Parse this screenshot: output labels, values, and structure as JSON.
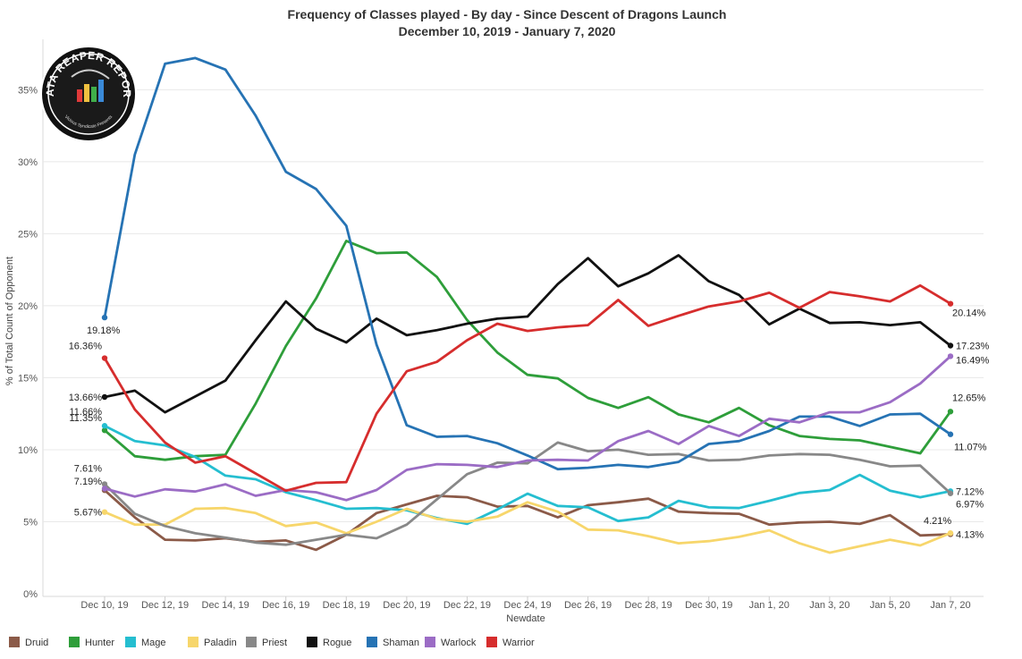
{
  "chart_data": {
    "type": "line",
    "title": "Frequency of Classes played - By day - Since Descent of Dragons Launch",
    "subtitle": "December 10, 2019 - January 7, 2020",
    "xlabel": "Newdate",
    "ylabel": "% of Total Count of Opponent",
    "ylim": [
      0,
      38
    ],
    "yticks": [
      0,
      5,
      10,
      15,
      20,
      25,
      30,
      35
    ],
    "ytick_labels": [
      "0%",
      "5%",
      "10%",
      "15%",
      "20%",
      "25%",
      "30%",
      "35%"
    ],
    "x": [
      "Dec 10, 19",
      "Dec 11, 19",
      "Dec 12, 19",
      "Dec 13, 19",
      "Dec 14, 19",
      "Dec 15, 19",
      "Dec 16, 19",
      "Dec 17, 19",
      "Dec 18, 19",
      "Dec 19, 19",
      "Dec 20, 19",
      "Dec 21, 19",
      "Dec 22, 19",
      "Dec 23, 19",
      "Dec 24, 19",
      "Dec 25, 19",
      "Dec 26, 19",
      "Dec 27, 19",
      "Dec 28, 19",
      "Dec 29, 19",
      "Dec 30, 19",
      "Dec 31, 19",
      "Jan 1, 20",
      "Jan 2, 20",
      "Jan 3, 20",
      "Jan 4, 20",
      "Jan 5, 20",
      "Jan 6, 20",
      "Jan 7, 20"
    ],
    "xtick_labels": [
      "Dec 10, 19",
      "Dec 12, 19",
      "Dec 14, 19",
      "Dec 16, 19",
      "Dec 18, 19",
      "Dec 20, 19",
      "Dec 22, 19",
      "Dec 24, 19",
      "Dec 26, 19",
      "Dec 28, 19",
      "Dec 30, 19",
      "Jan 1, 20",
      "Jan 3, 20",
      "Jan 5, 20",
      "Jan 7, 20"
    ],
    "grid": true,
    "legend_position": "bottom-left",
    "series": [
      {
        "name": "Druid",
        "color": "#8b5a48",
        "values": [
          7.19,
          5.3,
          3.75,
          3.7,
          3.85,
          3.6,
          3.7,
          3.05,
          4.1,
          5.6,
          6.2,
          6.8,
          6.7,
          6.05,
          6.1,
          5.3,
          6.15,
          6.35,
          6.6,
          5.7,
          5.6,
          5.55,
          4.8,
          4.95,
          5.0,
          4.85,
          5.45,
          4.05,
          4.13
        ],
        "start_label": "7.19%",
        "end_label": "4.13%"
      },
      {
        "name": "Hunter",
        "color": "#2e9e3a",
        "values": [
          11.35,
          9.55,
          9.3,
          9.55,
          9.65,
          13.2,
          17.2,
          20.5,
          24.5,
          23.65,
          23.7,
          22.0,
          19.0,
          16.75,
          15.2,
          14.95,
          13.6,
          12.9,
          13.65,
          12.45,
          11.9,
          12.9,
          11.7,
          10.95,
          10.75,
          10.65,
          10.2,
          9.75,
          12.65
        ],
        "start_label": "11.35%",
        "end_label": "12.65%"
      },
      {
        "name": "Mage",
        "color": "#25bed0",
        "values": [
          11.66,
          10.6,
          10.3,
          9.5,
          8.2,
          7.95,
          7.05,
          6.5,
          5.9,
          5.95,
          5.8,
          5.25,
          4.85,
          5.85,
          6.95,
          6.1,
          6.0,
          5.05,
          5.3,
          6.45,
          6.0,
          5.95,
          6.45,
          7.0,
          7.2,
          8.25,
          7.15,
          6.7,
          7.12
        ],
        "start_label": "11.66%",
        "end_label": "7.12%"
      },
      {
        "name": "Paladin",
        "color": "#f7d66b",
        "values": [
          5.67,
          4.8,
          4.8,
          5.9,
          5.95,
          5.6,
          4.7,
          4.95,
          4.2,
          5.0,
          5.9,
          5.2,
          5.0,
          5.35,
          6.35,
          5.7,
          4.45,
          4.4,
          4.0,
          3.5,
          3.65,
          3.95,
          4.4,
          3.5,
          2.85,
          3.3,
          3.75,
          3.35,
          4.21
        ],
        "start_label": "5.67%",
        "end_label": "4.21%"
      },
      {
        "name": "Priest",
        "color": "#888888",
        "values": [
          7.61,
          5.55,
          4.7,
          4.2,
          3.9,
          3.55,
          3.4,
          3.75,
          4.1,
          3.85,
          4.8,
          6.55,
          8.3,
          9.1,
          9.05,
          10.5,
          9.9,
          10.0,
          9.65,
          9.7,
          9.25,
          9.3,
          9.6,
          9.7,
          9.65,
          9.3,
          8.85,
          8.9,
          6.97
        ],
        "start_label": "7.61%",
        "end_label": "6.97%"
      },
      {
        "name": "Rogue",
        "color": "#111111",
        "values": [
          13.66,
          14.1,
          12.6,
          13.7,
          14.8,
          17.6,
          20.3,
          18.4,
          17.45,
          19.1,
          17.95,
          18.3,
          18.75,
          19.1,
          19.25,
          21.5,
          23.3,
          21.35,
          22.25,
          23.5,
          21.7,
          20.75,
          18.7,
          19.8,
          18.8,
          18.85,
          18.65,
          18.85,
          17.23
        ],
        "start_label": "13.66%",
        "end_label": "17.23%"
      },
      {
        "name": "Shaman",
        "color": "#2673b4",
        "values": [
          19.18,
          30.5,
          36.8,
          37.2,
          36.4,
          33.2,
          29.3,
          28.1,
          25.55,
          17.3,
          11.7,
          10.9,
          10.95,
          10.45,
          9.6,
          8.65,
          8.75,
          8.95,
          8.8,
          9.15,
          10.4,
          10.6,
          11.3,
          12.3,
          12.3,
          11.65,
          12.45,
          12.5,
          11.07
        ],
        "start_label": "19.18%",
        "end_label": "11.07%"
      },
      {
        "name": "Warlock",
        "color": "#9b6cc5",
        "values": [
          7.3,
          6.75,
          7.25,
          7.1,
          7.6,
          6.8,
          7.2,
          7.05,
          6.5,
          7.2,
          8.6,
          9.0,
          8.95,
          8.8,
          9.25,
          9.3,
          9.25,
          10.6,
          11.3,
          10.4,
          11.65,
          10.95,
          12.15,
          11.9,
          12.6,
          12.6,
          13.3,
          14.6,
          16.49
        ],
        "start_label": "",
        "end_label": "16.49%"
      },
      {
        "name": "Warrior",
        "color": "#d62d2d",
        "values": [
          16.36,
          12.8,
          10.5,
          9.1,
          9.55,
          8.35,
          7.15,
          7.7,
          7.75,
          12.5,
          15.45,
          16.1,
          17.6,
          18.75,
          18.25,
          18.5,
          18.65,
          20.4,
          18.6,
          19.3,
          19.95,
          20.3,
          20.9,
          19.85,
          20.95,
          20.65,
          20.3,
          21.4,
          20.14
        ],
        "start_label": "16.36%",
        "end_label": "20.14%"
      }
    ]
  },
  "logo": {
    "name": "DATA REAPER REPORT",
    "subtitle": "Vicious Syndicate Presents"
  }
}
